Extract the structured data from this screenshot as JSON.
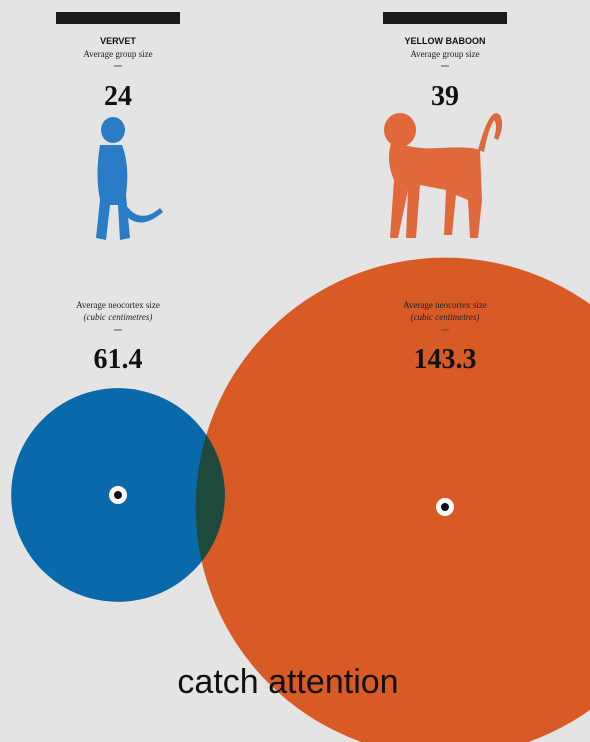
{
  "columns": [
    {
      "name": "VERVET",
      "group_size_label": "Average group size",
      "group_size": 24,
      "neocortex_label": "Average neocortex size",
      "neocortex_unit": "(cubic centimetres)",
      "neocortex": 61.4,
      "color": "#0a69ab",
      "figure_color": "#2a7cc6"
    },
    {
      "name": "YELLOW BABOON",
      "group_size_label": "Average group size",
      "group_size": 39,
      "neocortex_label": "Average neocortex size",
      "neocortex_unit": "(cubic centimetres)",
      "neocortex": 143.3,
      "color": "#d85a25",
      "figure_color": "#e0683a"
    }
  ],
  "caption": "catch attention"
}
